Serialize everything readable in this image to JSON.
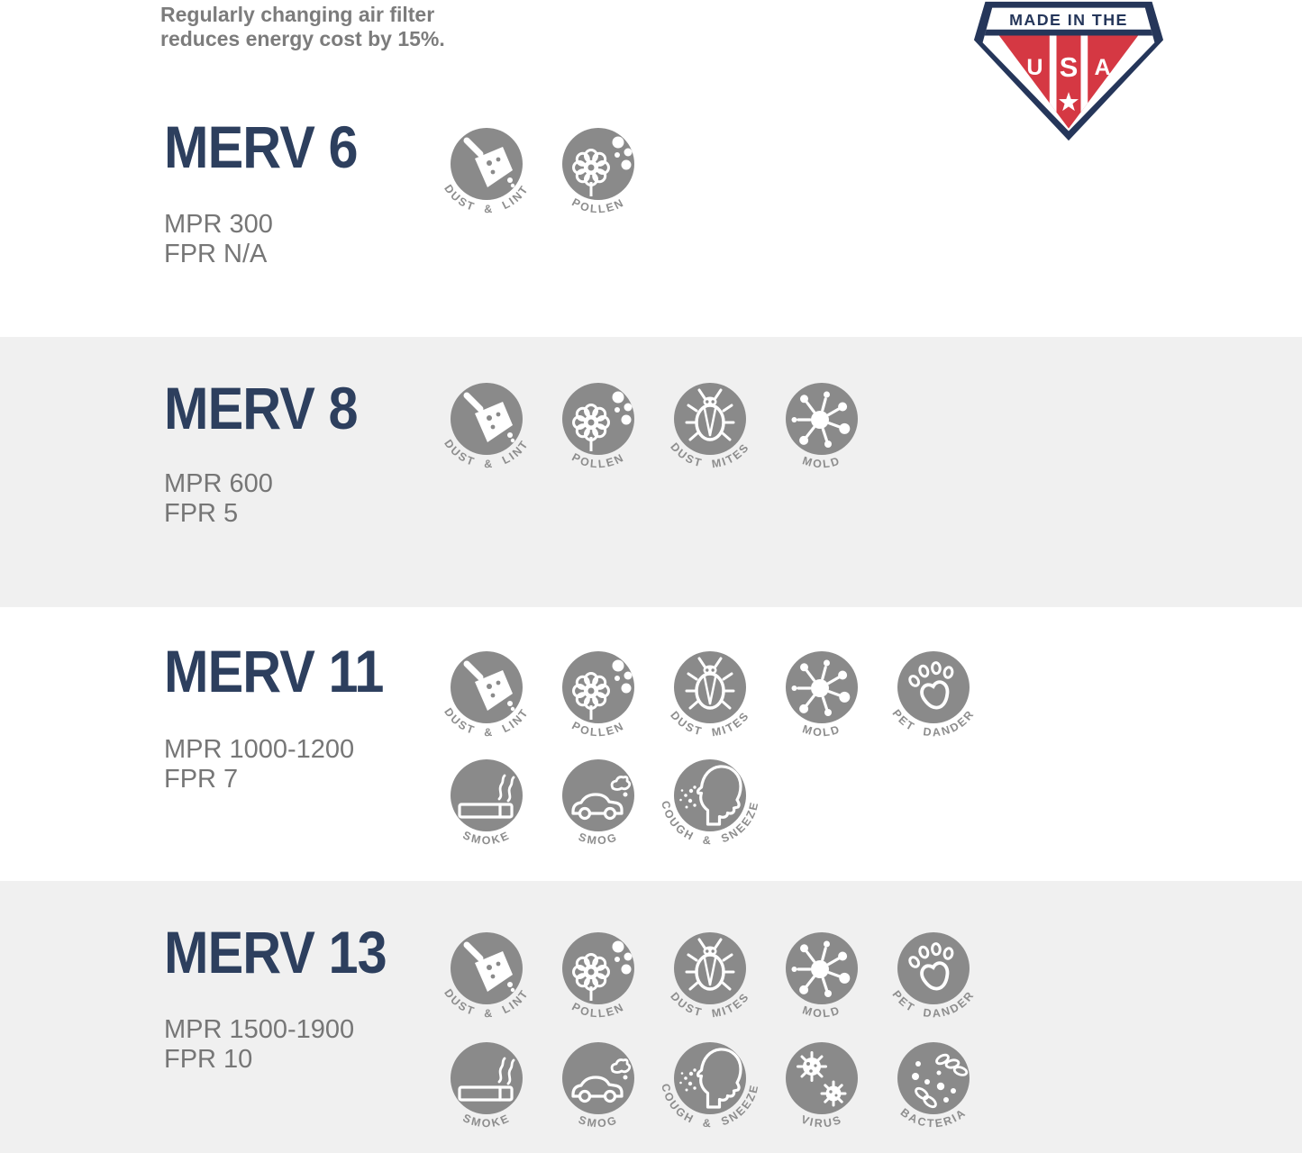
{
  "header": {
    "note": "Regularly changing air filter reduces energy cost by 15%."
  },
  "badge": {
    "banner": "MADE IN THE",
    "letters": [
      "U",
      "S",
      "A"
    ]
  },
  "icon_labels": {
    "dust_lint": "DUST & LINT",
    "pollen": "POLLEN",
    "dust_mites": "DUST MITES",
    "mold": "MOLD",
    "pet_dander": "PET DANDER",
    "smoke": "SMOKE",
    "smog": "SMOG",
    "cough_sneeze": "COUGH & SNEEZE",
    "virus": "VIRUS",
    "bacteria": "BACTERIA"
  },
  "sections": [
    {
      "name": "MERV 6",
      "mpr": "MPR 300",
      "fpr": "FPR N/A",
      "icon_rows": [
        [
          "dust_lint",
          "pollen"
        ]
      ]
    },
    {
      "name": "MERV 8",
      "mpr": "MPR 600",
      "fpr": "FPR 5",
      "icon_rows": [
        [
          "dust_lint",
          "pollen",
          "dust_mites",
          "mold"
        ]
      ]
    },
    {
      "name": "MERV 11",
      "mpr": "MPR 1000-1200",
      "fpr": "FPR 7",
      "icon_rows": [
        [
          "dust_lint",
          "pollen",
          "dust_mites",
          "mold",
          "pet_dander"
        ],
        [
          "smoke",
          "smog",
          "cough_sneeze"
        ]
      ]
    },
    {
      "name": "MERV 13",
      "mpr": "MPR 1500-1900",
      "fpr": "FPR 10",
      "icon_rows": [
        [
          "dust_lint",
          "pollen",
          "dust_mites",
          "mold",
          "pet_dander"
        ],
        [
          "smoke",
          "smog",
          "cough_sneeze",
          "virus",
          "bacteria"
        ]
      ]
    }
  ],
  "colors": {
    "heading_navy": "#2d3f5e",
    "badge_navy": "#25365a",
    "badge_red": "#d53843",
    "icon_gray": "#8a8a8a",
    "label_gray": "#8d8d8d",
    "text_gray": "#767676",
    "band_gray": "#f0f0f0"
  }
}
